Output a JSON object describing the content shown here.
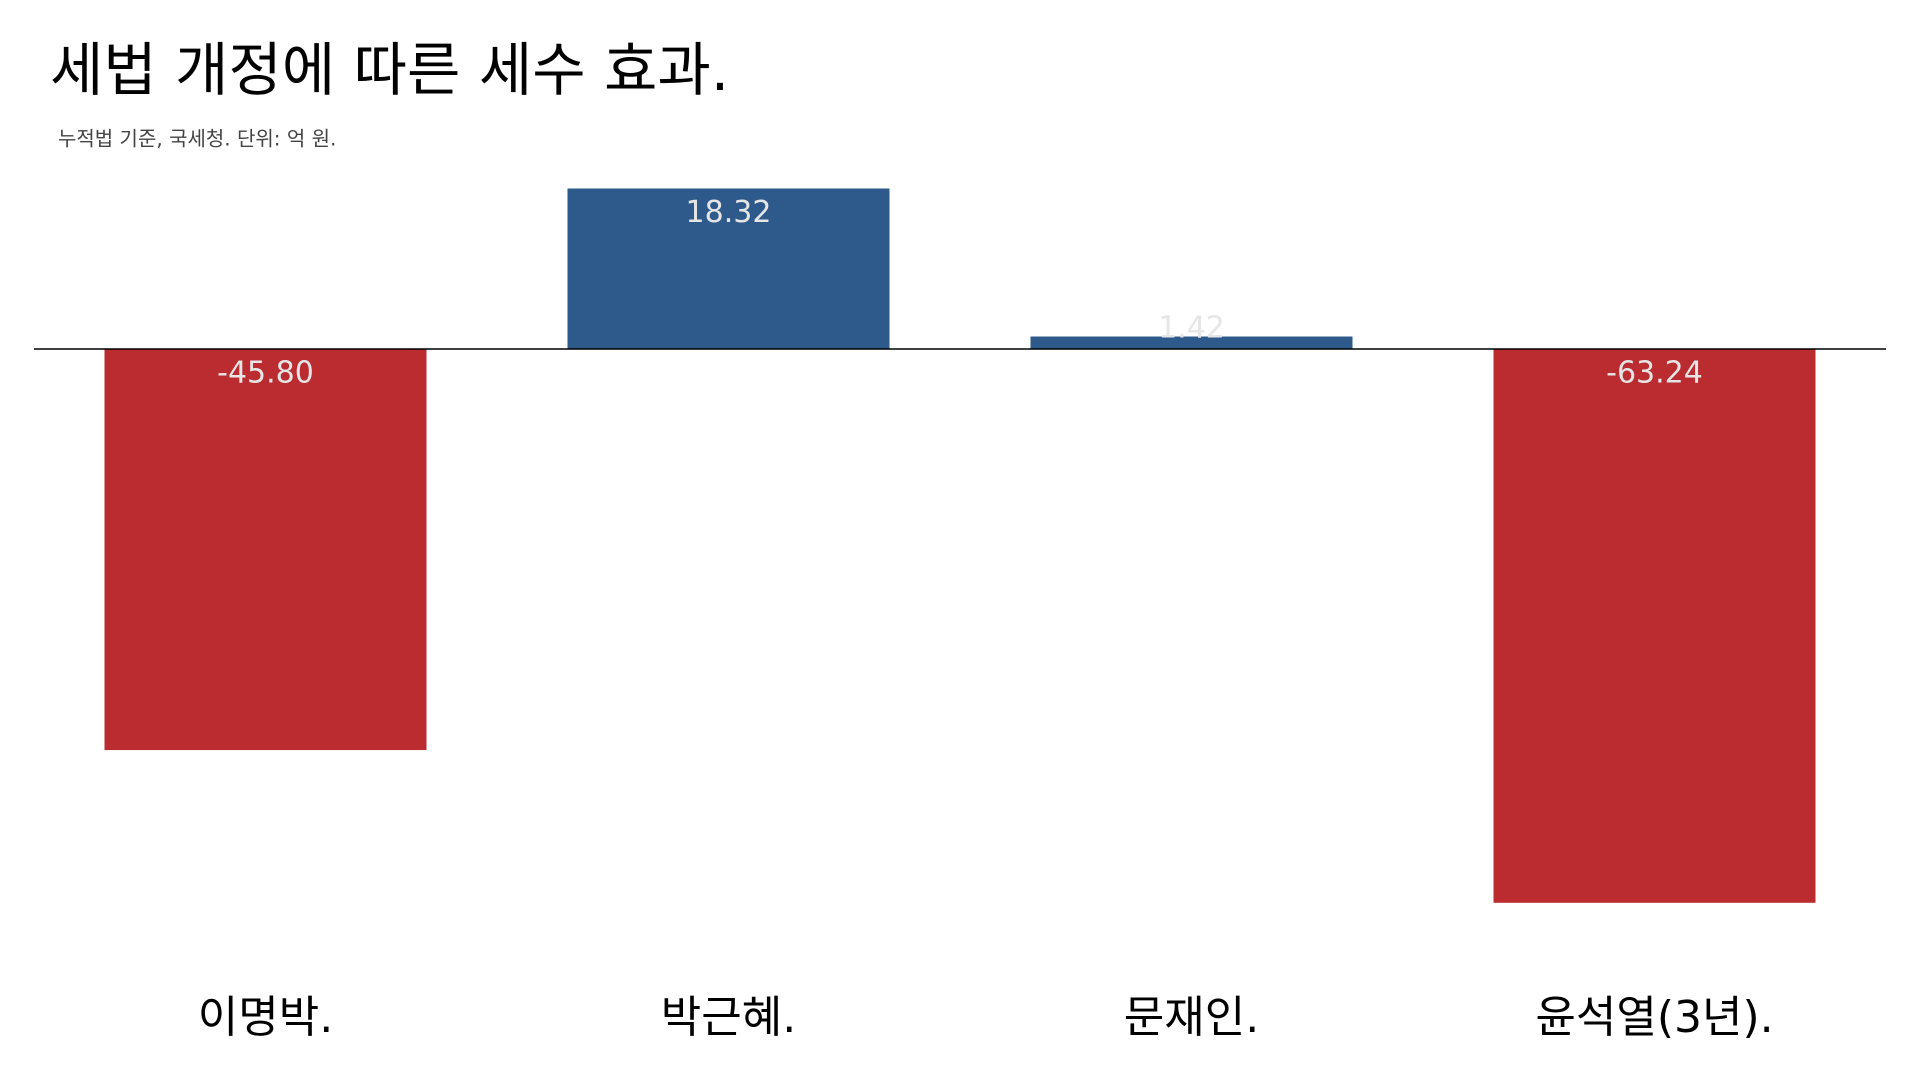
{
  "chart_data": {
    "type": "bar",
    "title": "세법 개정에 따른 세수 효과.",
    "subtitle": "누적법 기준, 국세청. 단위: 억 원.",
    "categories": [
      "이명박.",
      "박근혜.",
      "문재인.",
      "윤석열(3년)."
    ],
    "values": [
      -45.8,
      18.32,
      1.42,
      -63.24
    ],
    "value_labels": [
      "-45.80",
      "18.32",
      "1.42",
      "-63.24"
    ],
    "positive_color": "#2e5a8b",
    "negative_color": "#bb2c31",
    "ylim": [
      -70,
      25
    ]
  }
}
